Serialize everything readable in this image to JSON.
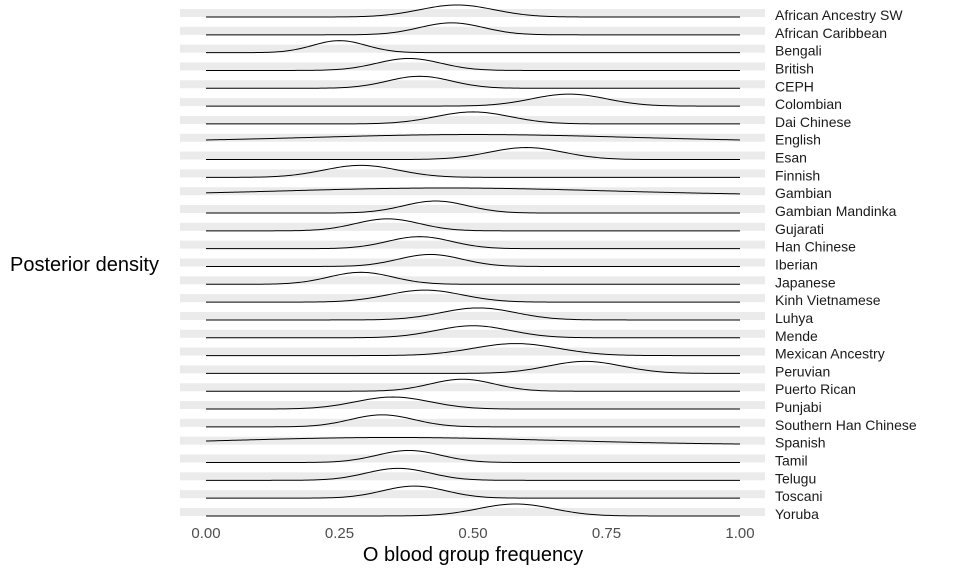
{
  "chart_data": {
    "type": "ridgeline",
    "xlabel": "O blood group frequency",
    "ylabel": "Posterior density",
    "xlim": [
      0,
      1
    ],
    "xticks": [
      "0.00",
      "0.25",
      "0.50",
      "0.75",
      "1.00"
    ],
    "xtick_values": [
      0,
      0.25,
      0.5,
      0.75,
      1
    ],
    "grid": true,
    "legend": "none",
    "series": [
      {
        "name": "African Ancestry SW",
        "mode": 0.47,
        "spread": 0.07,
        "height": 1.0
      },
      {
        "name": "African Caribbean",
        "mode": 0.46,
        "spread": 0.06,
        "height": 1.0
      },
      {
        "name": "Bengali",
        "mode": 0.25,
        "spread": 0.05,
        "height": 1.0
      },
      {
        "name": "British",
        "mode": 0.38,
        "spread": 0.06,
        "height": 1.0
      },
      {
        "name": "CEPH",
        "mode": 0.4,
        "spread": 0.06,
        "height": 1.0
      },
      {
        "name": "Colombian",
        "mode": 0.68,
        "spread": 0.07,
        "height": 1.0
      },
      {
        "name": "Dai Chinese",
        "mode": 0.5,
        "spread": 0.07,
        "height": 1.0
      },
      {
        "name": "English",
        "mode": 0.5,
        "spread": 0.3,
        "height": 0.6
      },
      {
        "name": "Esan",
        "mode": 0.6,
        "spread": 0.07,
        "height": 1.0
      },
      {
        "name": "Finnish",
        "mode": 0.29,
        "spread": 0.07,
        "height": 1.0
      },
      {
        "name": "Gambian",
        "mode": 0.45,
        "spread": 0.3,
        "height": 0.6
      },
      {
        "name": "Gambian Mandinka",
        "mode": 0.43,
        "spread": 0.06,
        "height": 1.0
      },
      {
        "name": "Gujarati",
        "mode": 0.34,
        "spread": 0.06,
        "height": 1.0
      },
      {
        "name": "Han Chinese",
        "mode": 0.4,
        "spread": 0.06,
        "height": 1.0
      },
      {
        "name": "Iberian",
        "mode": 0.42,
        "spread": 0.06,
        "height": 1.0
      },
      {
        "name": "Japanese",
        "mode": 0.29,
        "spread": 0.06,
        "height": 1.0
      },
      {
        "name": "Kinh Vietnamese",
        "mode": 0.41,
        "spread": 0.07,
        "height": 1.0
      },
      {
        "name": "Luhya",
        "mode": 0.51,
        "spread": 0.07,
        "height": 1.0
      },
      {
        "name": "Mende",
        "mode": 0.5,
        "spread": 0.07,
        "height": 1.0
      },
      {
        "name": "Mexican Ancestry",
        "mode": 0.58,
        "spread": 0.08,
        "height": 1.0
      },
      {
        "name": "Peruvian",
        "mode": 0.71,
        "spread": 0.07,
        "height": 1.0
      },
      {
        "name": "Puerto Rican",
        "mode": 0.48,
        "spread": 0.06,
        "height": 1.0
      },
      {
        "name": "Punjabi",
        "mode": 0.35,
        "spread": 0.07,
        "height": 1.0
      },
      {
        "name": "Southern Han Chinese",
        "mode": 0.33,
        "spread": 0.06,
        "height": 1.0
      },
      {
        "name": "Spanish",
        "mode": 0.35,
        "spread": 0.3,
        "height": 0.6
      },
      {
        "name": "Tamil",
        "mode": 0.38,
        "spread": 0.06,
        "height": 1.0
      },
      {
        "name": "Telugu",
        "mode": 0.36,
        "spread": 0.06,
        "height": 1.0
      },
      {
        "name": "Toscani",
        "mode": 0.39,
        "spread": 0.06,
        "height": 1.0
      },
      {
        "name": "Yoruba",
        "mode": 0.58,
        "spread": 0.07,
        "height": 1.0
      }
    ],
    "colors": {
      "gridband": "#ebebeb",
      "line": "#000000",
      "tick": "#4d4d4d"
    }
  }
}
